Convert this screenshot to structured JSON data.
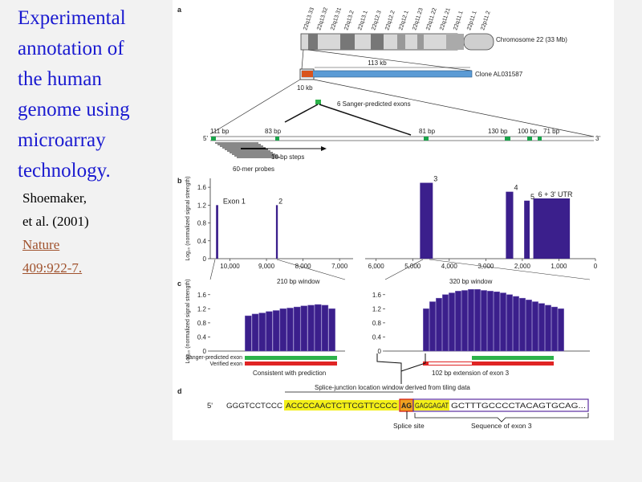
{
  "slide": {
    "title": [
      "Experimental",
      "annotation of",
      "the human",
      "genome using",
      "microarray",
      "technology."
    ],
    "citation": [
      "Shoemaker,",
      "et al. (2001)"
    ],
    "link": [
      "Nature",
      "409:922-7."
    ]
  },
  "figure": {
    "panel_a": {
      "letter": "a",
      "bands": [
        "22q13.33",
        "22q13.32",
        "22q13.31",
        "22q13.2",
        "22q13.1",
        "22q12.3",
        "22q12.2",
        "22q12.1",
        "22q11.23",
        "22q11.22",
        "22q11.21",
        "22q11.1",
        "22p11.1",
        "22p11.2"
      ],
      "chromosome": "Chromosome 22 (33 Mb)",
      "clone_length": "113 kb",
      "clone": "Clone AL031587",
      "window": "10 kb",
      "exons_label": "6 Sanger-predicted exons",
      "exon_sizes": [
        "111 bp",
        "83 bp",
        "81 bp",
        "130 bp",
        "100 bp",
        "71 bp"
      ],
      "five_prime": "5'",
      "three_prime": "3'",
      "steps": "10 bp steps",
      "probes": "60-mer probes"
    },
    "panel_b": {
      "letter": "b",
      "ylabel": "Log₁₀ (normalized signal strength)",
      "ylim": [
        0,
        1.8
      ],
      "yticks": [
        0,
        0.4,
        0.8,
        1.2,
        1.6
      ],
      "xticks": [
        {
          "value": 10000,
          "label": "10,000"
        },
        {
          "value": 9000,
          "label": "9,000"
        },
        {
          "value": 8000,
          "label": "8,000"
        },
        {
          "value": 7000,
          "label": "7,000"
        },
        {
          "value": 6000,
          "label": "6,000"
        },
        {
          "value": 5000,
          "label": "5,000"
        },
        {
          "value": 4000,
          "label": "4,000"
        },
        {
          "value": 3000,
          "label": "3,000"
        },
        {
          "value": 2000,
          "label": "2,000"
        },
        {
          "value": 1000,
          "label": "1,000"
        },
        0
      ],
      "peaks": [
        {
          "label": "Exon 1",
          "start": 10380,
          "end": 10320,
          "height": 1.2
        },
        {
          "label": "2",
          "start": 8740,
          "end": 8690,
          "height": 1.2
        },
        {
          "label": "3",
          "start": 4800,
          "end": 4450,
          "height": 1.7
        },
        {
          "label": "4",
          "start": 2450,
          "end": 2250,
          "height": 1.5
        },
        {
          "label": "5",
          "start": 1950,
          "end": 1800,
          "height": 1.3
        },
        {
          "label": "6 + 3' UTR",
          "start": 1700,
          "end": 700,
          "height": 1.35
        }
      ]
    },
    "panel_c": {
      "letter": "c",
      "ylabel": "Log₁₀ (normalized signal strength)",
      "ylim": [
        0,
        1.8
      ],
      "yticks": [
        0,
        0.4,
        0.8,
        1.2,
        1.6
      ],
      "windows": [
        {
          "title": "210 bp window",
          "values": [
            1.0,
            1.05,
            1.08,
            1.12,
            1.15,
            1.2,
            1.22,
            1.25,
            1.28,
            1.3,
            1.32,
            1.3,
            1.2
          ]
        },
        {
          "title": "320 bp window",
          "values": [
            1.2,
            1.4,
            1.5,
            1.6,
            1.65,
            1.7,
            1.72,
            1.75,
            1.75,
            1.72,
            1.7,
            1.68,
            1.65,
            1.6,
            1.55,
            1.5,
            1.45,
            1.4,
            1.35,
            1.3,
            1.25,
            1.2
          ]
        }
      ],
      "legend": [
        "Sanger-predicted exon",
        "Verified exon"
      ],
      "notes": [
        "Consistent with prediction",
        "102 bp extension of exon 3"
      ]
    },
    "panel_d": {
      "letter": "d",
      "window": "Splice-junction location window derived from tiling data",
      "five_prime": "5'",
      "sequence": [
        "GGGTCCTCCC",
        "ACCCCAACTCTTCGTTCCCC",
        "AG",
        "GAGGAGAT",
        "GCTTTGCCCCTACAGTGCAG..."
      ],
      "splice_site": "Splice site",
      "exon_sequence": "Sequence of exon 3"
    }
  }
}
